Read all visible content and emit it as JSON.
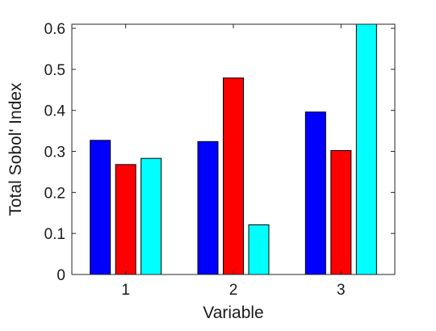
{
  "chart_data": {
    "type": "bar",
    "title": "",
    "xlabel": "Variable",
    "ylabel": "Total Sobol' Index",
    "categories": [
      "1",
      "2",
      "3"
    ],
    "ylim": [
      0,
      0.61
    ],
    "yticks": [
      "0",
      "0.1",
      "0.2",
      "0.3",
      "0.4",
      "0.5",
      "0.6"
    ],
    "ytick_values": [
      0,
      0.1,
      0.2,
      0.3,
      0.4,
      0.5,
      0.6
    ],
    "grid": false,
    "legend": "none",
    "series": [
      {
        "color": "#0000ff",
        "values": [
          0.327,
          0.324,
          0.396
        ]
      },
      {
        "color": "#ff0000",
        "values": [
          0.268,
          0.479,
          0.302
        ]
      },
      {
        "color": "#00ffff",
        "values": [
          0.283,
          0.121,
          0.612
        ]
      }
    ]
  }
}
